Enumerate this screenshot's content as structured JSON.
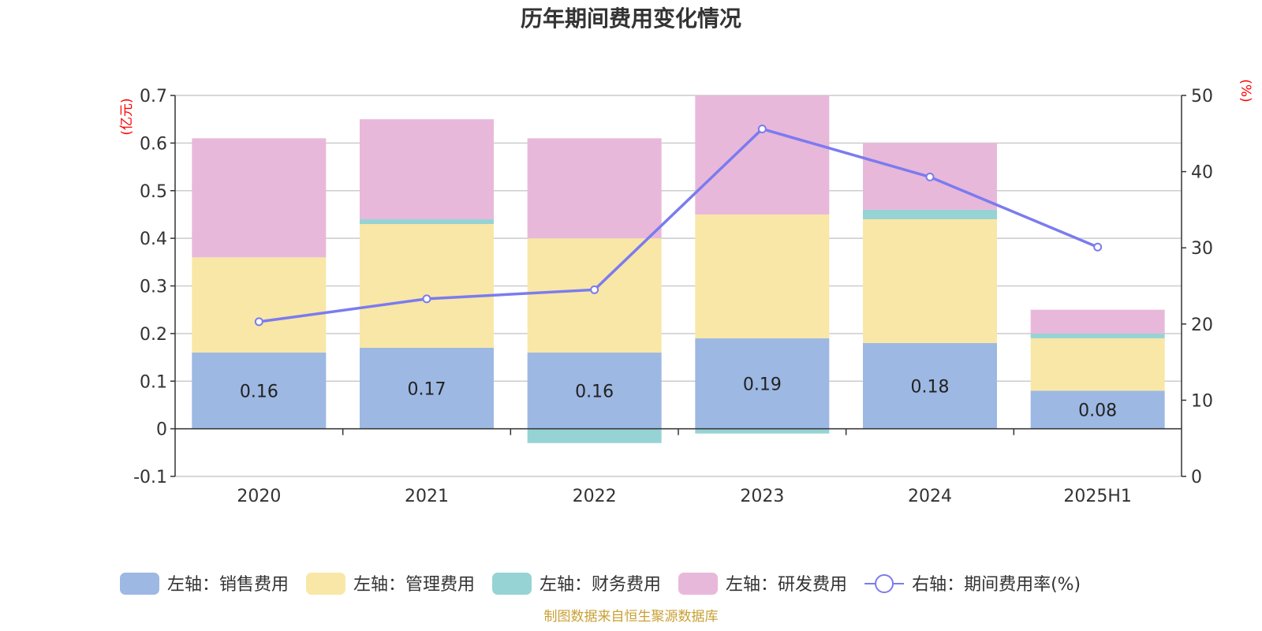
{
  "chart_data": {
    "type": "bar",
    "stacked": true,
    "title": "历年期间费用变化情况",
    "categories": [
      "2020",
      "2021",
      "2022",
      "2023",
      "2024",
      "2025H1"
    ],
    "y_left": {
      "unit": "(亿元)",
      "min": -0.1,
      "max": 0.7,
      "ticks": [
        -0.1,
        0,
        0.1,
        0.2,
        0.3,
        0.4,
        0.5,
        0.6,
        0.7
      ]
    },
    "y_right": {
      "unit": "(%)",
      "min": 0,
      "max": 50,
      "ticks": [
        0,
        10,
        20,
        30,
        40,
        50
      ]
    },
    "grid": true,
    "legend_position": "bottom",
    "series": [
      {
        "name": "左轴：销售费用",
        "axis": "left",
        "color": "#9db8e2",
        "values": [
          0.16,
          0.17,
          0.16,
          0.19,
          0.18,
          0.08
        ],
        "labels": [
          "0.16",
          "0.17",
          "0.16",
          "0.19",
          "0.18",
          "0.08"
        ]
      },
      {
        "name": "左轴：管理费用",
        "axis": "left",
        "color": "#f8e7a7",
        "values": [
          0.2,
          0.26,
          0.24,
          0.26,
          0.26,
          0.11
        ]
      },
      {
        "name": "左轴：财务费用",
        "axis": "left",
        "color": "#96d3d4",
        "values": [
          0.0,
          0.01,
          -0.03,
          -0.01,
          0.02,
          0.01
        ]
      },
      {
        "name": "左轴：研发费用",
        "axis": "left",
        "color": "#e8b8da",
        "values": [
          0.25,
          0.21,
          0.21,
          0.25,
          0.14,
          0.05
        ]
      },
      {
        "name": "右轴：期间费用率(%)",
        "axis": "right",
        "type": "line",
        "color": "#7b7bef",
        "values": [
          20.3,
          23.3,
          24.5,
          45.6,
          39.3,
          30.1
        ]
      }
    ],
    "source": "制图数据来自恒生聚源数据库"
  }
}
